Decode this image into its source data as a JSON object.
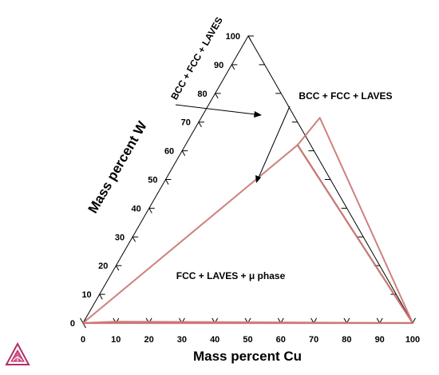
{
  "chart_data": {
    "type": "ternary_phase_diagram",
    "x_axis": {
      "title": "Mass percent Cu",
      "ticks": [
        0,
        10,
        20,
        30,
        40,
        50,
        60,
        70,
        80,
        90,
        100
      ]
    },
    "left_axis": {
      "title": "Mass percent W",
      "ticks": [
        0,
        10,
        20,
        30,
        40,
        50,
        60,
        70,
        80,
        90,
        100
      ]
    },
    "regions": [
      {
        "label": "FCC + LAVES + μ phase"
      },
      {
        "label": "BCC + FCC + LAVES"
      },
      {
        "label": "BCC + FCC + LAVES"
      }
    ],
    "tie_triangles": [
      {
        "vertices_cu_w": [
          [
            34.0,
            62.0
          ],
          [
            100.0,
            0.0
          ],
          [
            36.0,
            71.5
          ]
        ],
        "color": "#e0707a"
      },
      {
        "vertices_cu_w": [
          [
            0.0,
            0.0
          ],
          [
            100.0,
            0.0
          ],
          [
            34.0,
            62.0
          ]
        ],
        "color": "#e0707a"
      },
      {
        "vertices_cu_w": [
          [
            0.0,
            0.0
          ],
          [
            100.0,
            0.0
          ],
          [
            10.0,
            0.5
          ]
        ],
        "color": "#e0707a"
      }
    ],
    "colors": {
      "frame": "#000000",
      "phase_boundary": "#e0707a",
      "boundary_shadow": "#8a6a4a"
    }
  },
  "logo": {
    "name": "thermo-calc-triangle-logo",
    "color": "#b0306a"
  }
}
